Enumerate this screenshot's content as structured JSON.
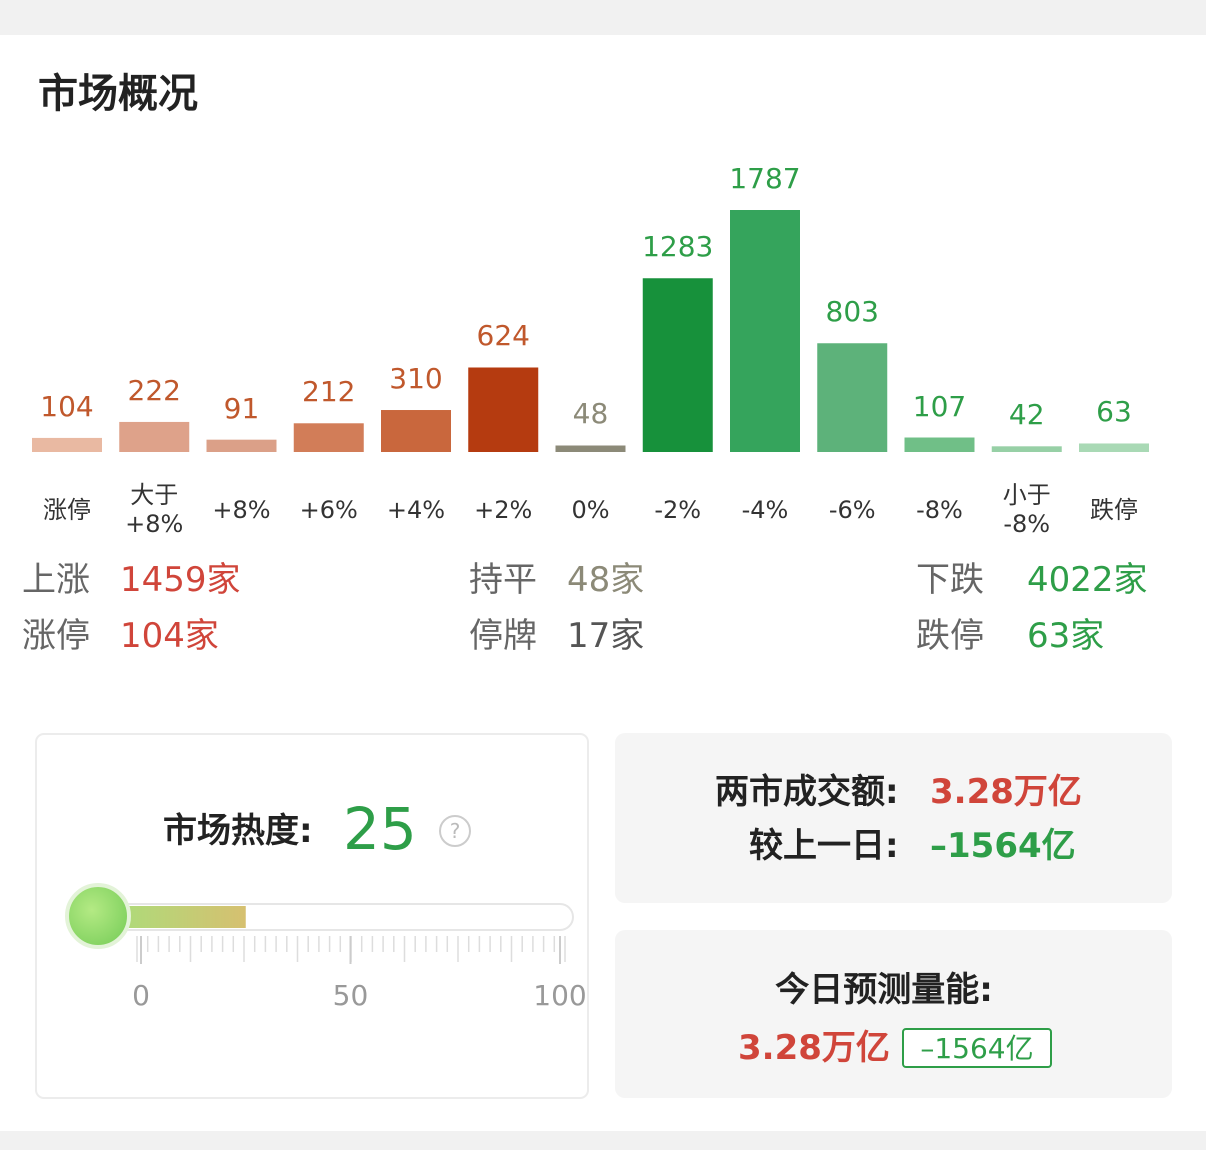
{
  "header": {
    "title": "市场概况"
  },
  "chart_data": {
    "type": "bar",
    "categories": [
      "涨停",
      "大于 +8%",
      "+8%",
      "+6%",
      "+4%",
      "+2%",
      "0%",
      "-2%",
      "-4%",
      "-6%",
      "-8%",
      "小于 -8%",
      "跌停"
    ],
    "values": [
      104,
      222,
      91,
      212,
      310,
      624,
      48,
      1283,
      1787,
      803,
      107,
      42,
      63
    ],
    "colors": [
      "#e9b9a2",
      "#dea28a",
      "#dba088",
      "#d27d58",
      "#c9673d",
      "#b53b10",
      "#8c8a78",
      "#17913b",
      "#35a45c",
      "#5db27a",
      "#70bf87",
      "#97d0a6",
      "#a9d9b5"
    ],
    "label_colors": [
      "#c0582c",
      "#c0582c",
      "#c0582c",
      "#c0582c",
      "#c0582c",
      "#c0582c",
      "#8c8a78",
      "#2e9e48",
      "#2e9e48",
      "#2e9e48",
      "#2e9e48",
      "#2e9e48",
      "#2e9e48"
    ]
  },
  "summary": {
    "rows": [
      [
        {
          "label": "上涨",
          "value": "1459家",
          "color": "#d0453a"
        },
        {
          "label": "持平",
          "value": "48家",
          "color": "#8c8a78"
        },
        {
          "label": "下跌",
          "value": "4022家",
          "color": "#2e9e48"
        }
      ],
      [
        {
          "label": "涨停",
          "value": "104家",
          "color": "#d0453a"
        },
        {
          "label": "停牌",
          "value": "17家",
          "color": "#555555"
        },
        {
          "label": "跌停",
          "value": "63家",
          "color": "#2e9e48"
        }
      ]
    ]
  },
  "heat": {
    "label": "市场热度:",
    "value": 25,
    "help": "?",
    "ticks": [
      0,
      50,
      100
    ]
  },
  "turnover": {
    "label": "两市成交额:",
    "value": "3.28万亿",
    "change_label": "较上一日:",
    "change": "–1564亿"
  },
  "forecast": {
    "label": "今日预测量能:",
    "value": "3.28万亿",
    "change": "–1564亿"
  }
}
